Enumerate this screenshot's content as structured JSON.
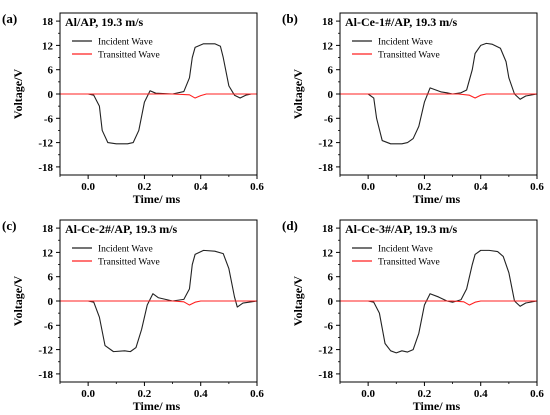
{
  "chart_data": [
    {
      "type": "line",
      "panel_label": "(a)",
      "title": "Al/AP, 19.3 m/s",
      "xlabel": "Time/ ms",
      "ylabel": "Voltage/V",
      "xlim": [
        -0.1,
        0.6
      ],
      "ylim": [
        -20,
        20
      ],
      "xticks": [
        -0.0,
        0.2,
        0.4,
        0.6
      ],
      "xtick_labels": [
        "0.0",
        "0.2",
        "0.4",
        "0.6"
      ],
      "yticks": [
        18,
        12,
        6,
        0,
        -6,
        -12,
        -18
      ],
      "ytick_labels": [
        "18",
        "12",
        "6",
        "0",
        "-6",
        "-12",
        "-18"
      ],
      "legend": "top-center",
      "grid": false,
      "series": [
        {
          "name": "Incident Wave",
          "color": "#222222",
          "x": [
            -0.1,
            0.0,
            0.02,
            0.04,
            0.05,
            0.07,
            0.1,
            0.14,
            0.16,
            0.18,
            0.2,
            0.22,
            0.24,
            0.3,
            0.34,
            0.36,
            0.37,
            0.38,
            0.41,
            0.45,
            0.47,
            0.48,
            0.5,
            0.52,
            0.54,
            0.56,
            0.58,
            0.6
          ],
          "y": [
            0,
            0,
            -0.3,
            -3,
            -9,
            -12,
            -12.3,
            -12.3,
            -12,
            -9,
            -2,
            0.8,
            0.2,
            0,
            0.6,
            4,
            9,
            11.5,
            12.4,
            12.4,
            11.8,
            9,
            2,
            -0.3,
            -1,
            -0.3,
            0,
            0
          ]
        },
        {
          "name": "Transitted Wave",
          "color": "#ff2020",
          "x": [
            -0.1,
            0.3,
            0.36,
            0.38,
            0.4,
            0.42,
            0.5,
            0.6
          ],
          "y": [
            0,
            0,
            -0.2,
            -1.0,
            -0.4,
            0,
            0,
            0
          ]
        }
      ]
    },
    {
      "type": "line",
      "panel_label": "(b)",
      "title": "Al-Ce-1#/AP, 19.3 m/s",
      "xlabel": "Time/ ms",
      "ylabel": "Voltage/V",
      "xlim": [
        -0.1,
        0.6
      ],
      "ylim": [
        -20,
        20
      ],
      "xticks": [
        -0.0,
        0.2,
        0.4,
        0.6
      ],
      "xtick_labels": [
        "0.0",
        "0.2",
        "0.4",
        "0.6"
      ],
      "yticks": [
        18,
        12,
        6,
        0,
        -6,
        -12,
        -18
      ],
      "ytick_labels": [
        "18",
        "12",
        "6",
        "0",
        "-6",
        "-12",
        "-18"
      ],
      "legend": "top-center",
      "grid": false,
      "series": [
        {
          "name": "Incident Wave",
          "color": "#222222",
          "x": [
            -0.1,
            0.0,
            0.02,
            0.03,
            0.05,
            0.08,
            0.12,
            0.14,
            0.16,
            0.18,
            0.2,
            0.22,
            0.26,
            0.28,
            0.3,
            0.33,
            0.35,
            0.37,
            0.38,
            0.4,
            0.42,
            0.44,
            0.47,
            0.49,
            0.5,
            0.52,
            0.54,
            0.56,
            0.6
          ],
          "y": [
            0,
            0,
            -1,
            -6,
            -11.5,
            -12.3,
            -12.3,
            -12,
            -11,
            -8,
            -2,
            1.5,
            0.5,
            0.3,
            0,
            0.3,
            1.0,
            6,
            10,
            12,
            12.5,
            12.3,
            11.3,
            8,
            4,
            0,
            -1.3,
            -0.5,
            0
          ]
        },
        {
          "name": "Transitted Wave",
          "color": "#ff2020",
          "x": [
            -0.1,
            0.32,
            0.36,
            0.38,
            0.4,
            0.42,
            0.5,
            0.6
          ],
          "y": [
            0,
            0,
            -0.3,
            -1.0,
            -0.3,
            0,
            0,
            0
          ]
        }
      ]
    },
    {
      "type": "line",
      "panel_label": "(c)",
      "title": "Al-Ce-2#/AP, 19.3 m/s",
      "xlabel": "Time/ ms",
      "ylabel": "Voltage/V",
      "xlim": [
        -0.1,
        0.6
      ],
      "ylim": [
        -20,
        20
      ],
      "xticks": [
        -0.0,
        0.2,
        0.4,
        0.6
      ],
      "xtick_labels": [
        "0.0",
        "0.2",
        "0.4",
        "0.6"
      ],
      "yticks": [
        18,
        12,
        6,
        0,
        -6,
        -12,
        -18
      ],
      "ytick_labels": [
        "18",
        "12",
        "6",
        "0",
        "-6",
        "-12",
        "-18"
      ],
      "legend": "top-center",
      "grid": false,
      "series": [
        {
          "name": "Incident Wave",
          "color": "#222222",
          "x": [
            -0.1,
            0.0,
            0.02,
            0.04,
            0.06,
            0.09,
            0.13,
            0.15,
            0.17,
            0.19,
            0.21,
            0.23,
            0.25,
            0.3,
            0.34,
            0.36,
            0.37,
            0.38,
            0.41,
            0.45,
            0.48,
            0.5,
            0.52,
            0.53,
            0.55,
            0.6
          ],
          "y": [
            0,
            0,
            -0.3,
            -4,
            -11,
            -12.5,
            -12.3,
            -12.5,
            -11.5,
            -7,
            -1,
            1.8,
            0.8,
            0,
            0.4,
            3,
            9,
            11.5,
            12.5,
            12.3,
            11.7,
            8,
            1,
            -1.5,
            -0.5,
            0
          ]
        },
        {
          "name": "Transitted Wave",
          "color": "#ff2020",
          "x": [
            -0.1,
            0.3,
            0.34,
            0.36,
            0.38,
            0.4,
            0.5,
            0.6
          ],
          "y": [
            0,
            0,
            -0.2,
            -1.0,
            -0.3,
            0,
            0,
            0
          ]
        }
      ]
    },
    {
      "type": "line",
      "panel_label": "(d)",
      "title": "Al-Ce-3#/AP, 19.3 m/s",
      "xlabel": "Time/ ms",
      "ylabel": "Voltage/V",
      "xlim": [
        -0.1,
        0.6
      ],
      "ylim": [
        -20,
        20
      ],
      "xticks": [
        -0.0,
        0.2,
        0.4,
        0.6
      ],
      "xtick_labels": [
        "0.0",
        "0.2",
        "0.4",
        "0.6"
      ],
      "yticks": [
        18,
        12,
        6,
        0,
        -6,
        -12,
        -18
      ],
      "ytick_labels": [
        "18",
        "12",
        "6",
        "0",
        "-6",
        "-12",
        "-18"
      ],
      "legend": "top-center",
      "grid": false,
      "series": [
        {
          "name": "Incident Wave",
          "color": "#222222",
          "x": [
            -0.1,
            0.0,
            0.02,
            0.04,
            0.06,
            0.08,
            0.1,
            0.12,
            0.14,
            0.16,
            0.18,
            0.2,
            0.22,
            0.25,
            0.28,
            0.3,
            0.33,
            0.35,
            0.37,
            0.38,
            0.4,
            0.43,
            0.46,
            0.48,
            0.5,
            0.52,
            0.54,
            0.56,
            0.6
          ],
          "y": [
            0,
            0,
            -0.3,
            -3,
            -10.5,
            -12.3,
            -12.8,
            -12.3,
            -12.6,
            -12,
            -8,
            -1,
            1.8,
            1.0,
            0,
            -0.3,
            0.3,
            3,
            9,
            11.5,
            12.5,
            12.5,
            12.2,
            11,
            7,
            0,
            -1.3,
            -0.5,
            0
          ]
        },
        {
          "name": "Transitted Wave",
          "color": "#ff2020",
          "x": [
            -0.1,
            0.3,
            0.34,
            0.36,
            0.38,
            0.4,
            0.5,
            0.6
          ],
          "y": [
            0,
            0,
            -0.2,
            -1.0,
            -0.3,
            0,
            0,
            0
          ]
        }
      ]
    }
  ]
}
